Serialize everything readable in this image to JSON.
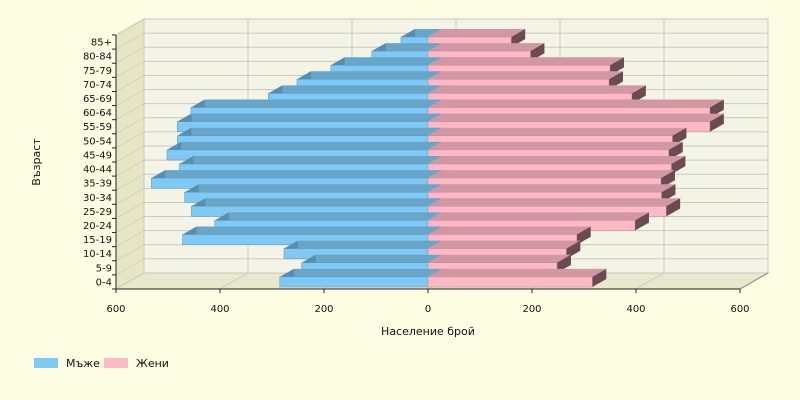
{
  "chart_data": {
    "type": "bar",
    "orientation": "horizontal",
    "style": "population-pyramid-3d",
    "categories": [
      "0-4",
      "5-9",
      "10-14",
      "15-19",
      "20-24",
      "25-29",
      "30-34",
      "35-39",
      "40-44",
      "45-49",
      "50-54",
      "55-59",
      "60-64",
      "65-69",
      "70-74",
      "75-79",
      "80-84",
      "85+"
    ],
    "series": [
      {
        "name": "Мъже",
        "color": "#7ec9f5",
        "side": "left",
        "values": [
          285,
          243,
          277,
          472,
          410,
          455,
          468,
          532,
          478,
          502,
          482,
          482,
          456,
          307,
          252,
          187,
          108,
          52
        ]
      },
      {
        "name": "Жени",
        "color": "#ffb8c6",
        "side": "right",
        "values": [
          316,
          248,
          266,
          286,
          398,
          458,
          449,
          448,
          468,
          463,
          470,
          542,
          542,
          392,
          348,
          350,
          197,
          160
        ]
      }
    ],
    "xlabel": "Население брой",
    "ylabel": "Възраст",
    "xlim": [
      -600,
      600
    ],
    "xticks": [
      "600",
      "400",
      "200",
      "0",
      "200",
      "400",
      "600"
    ],
    "grid": true,
    "legend_position": "bottom-left",
    "colors": {
      "background": "#fdfde4",
      "plot_back": "#f4f4e6",
      "plot_side": "#e6e6c4",
      "grid": "#c8c8c8",
      "axis": "#222222"
    }
  }
}
